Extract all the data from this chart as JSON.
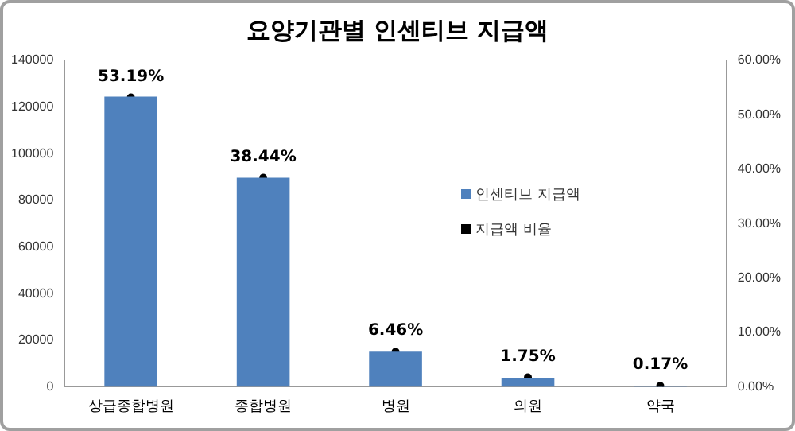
{
  "chart_data": {
    "type": "bar",
    "title": "요양기관별 인센티브 지급액",
    "categories": [
      "상급종합병원",
      "종합병원",
      "병원",
      "의원",
      "약국"
    ],
    "series": [
      {
        "name": "인센티브 지급액",
        "color": "#4f81bd",
        "values": [
          124500,
          89700,
          15100,
          3900,
          400
        ]
      },
      {
        "name": "지급액 비율",
        "type": "scatter",
        "axis": "y2",
        "marker": "circle",
        "color": "#000000",
        "values": [
          53.19,
          38.44,
          6.46,
          1.75,
          0.17
        ],
        "value_labels": [
          "53.19%",
          "38.44%",
          "6.46%",
          "1.75%",
          "0.17%"
        ]
      }
    ],
    "ylim": [
      0,
      140000
    ],
    "yticks": [
      0,
      20000,
      40000,
      60000,
      80000,
      100000,
      120000,
      140000
    ],
    "y2lim": [
      0,
      60
    ],
    "y2ticks": [
      {
        "value": 0,
        "label": "0.00%"
      },
      {
        "value": 10,
        "label": "10.00%"
      },
      {
        "value": 20,
        "label": "20.00%"
      },
      {
        "value": 30,
        "label": "30.00%"
      },
      {
        "value": 40,
        "label": "40.00%"
      },
      {
        "value": 50,
        "label": "50.00%"
      },
      {
        "value": 60,
        "label": "60.00%"
      }
    ],
    "grid": false,
    "legend": "right"
  }
}
